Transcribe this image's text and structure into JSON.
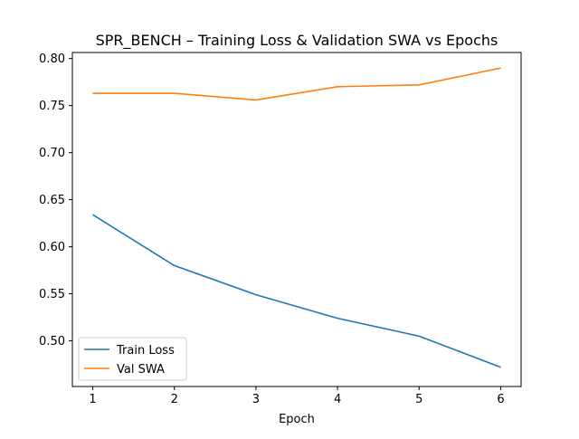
{
  "chart_data": {
    "type": "line",
    "title": "SPR_BENCH – Training Loss & Validation SWA vs Epochs",
    "xlabel": "Epoch",
    "ylabel": "",
    "x": [
      1,
      2,
      3,
      4,
      5,
      6
    ],
    "xlim": [
      0.75,
      6.25
    ],
    "ylim": [
      0.4515,
      0.8064
    ],
    "x_ticks": [
      "1",
      "2",
      "3",
      "4",
      "5",
      "6"
    ],
    "y_ticks": [
      "0.50",
      "0.55",
      "0.60",
      "0.65",
      "0.70",
      "0.75",
      "0.80"
    ],
    "grid": false,
    "legend_position": "lower-left",
    "series": [
      {
        "name": "Train Loss",
        "color": "#1f77b4",
        "values": [
          0.634,
          0.58,
          0.549,
          0.524,
          0.505,
          0.472
        ]
      },
      {
        "name": "Val SWA",
        "color": "#ff7f0e",
        "values": [
          0.763,
          0.763,
          0.756,
          0.77,
          0.772,
          0.79
        ]
      }
    ]
  }
}
